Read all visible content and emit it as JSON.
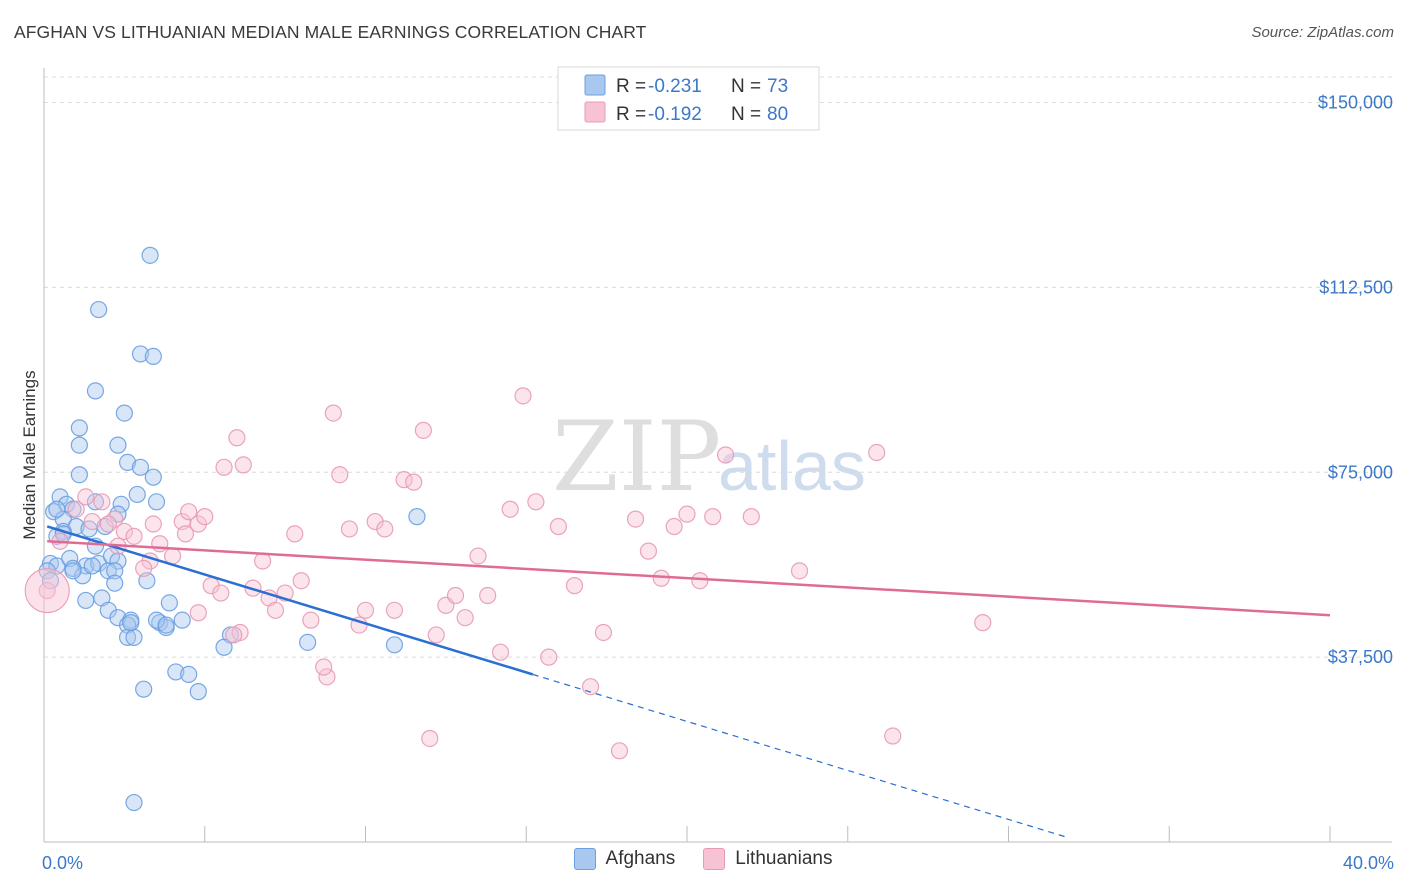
{
  "title": "AFGHAN VS LITHUANIAN MEDIAN MALE EARNINGS CORRELATION CHART",
  "source": "Source: ZipAtlas.com",
  "chart_data": {
    "type": "scatter",
    "title": "AFGHAN VS LITHUANIAN MEDIAN MALE EARNINGS CORRELATION CHART",
    "xlabel": "",
    "ylabel": "Median Male Earnings",
    "xlim": [
      0,
      40
    ],
    "ylim": [
      0,
      157000
    ],
    "x_tick_labels": [
      "0.0%",
      "40.0%"
    ],
    "y_ticks": [
      37500,
      75000,
      112500,
      150000
    ],
    "y_tick_labels": [
      "$37,500",
      "$75,000",
      "$112,500",
      "$150,000"
    ],
    "grid": true,
    "watermark": {
      "zip": "ZIP",
      "atlas": "atlas"
    },
    "legend": [
      {
        "r_label": "R = ",
        "r_value": "-0.231",
        "n_label": "N = ",
        "n_value": "73"
      },
      {
        "r_label": "R = ",
        "r_value": "-0.192",
        "n_label": "N = ",
        "n_value": "80"
      }
    ],
    "series": [
      {
        "name": "Afghans",
        "color": "#6a9fe0",
        "fill": "#a9c8f0",
        "trend_color": "#2a6fd1",
        "trend": {
          "x0": 0.1,
          "y0": 64000,
          "x1": 15.2,
          "y1": 34000,
          "dash_x1": 31.8,
          "dash_y1": 1000
        },
        "points": [
          [
            2.3,
            80500
          ],
          [
            1.7,
            108000
          ],
          [
            3.3,
            119000
          ],
          [
            3.0,
            99000
          ],
          [
            3.4,
            98500
          ],
          [
            1.6,
            91500
          ],
          [
            2.5,
            87000
          ],
          [
            1.1,
            84000
          ],
          [
            1.1,
            80500
          ],
          [
            2.6,
            77000
          ],
          [
            3.0,
            76000
          ],
          [
            3.4,
            74000
          ],
          [
            1.1,
            74500
          ],
          [
            0.5,
            70000
          ],
          [
            0.7,
            68500
          ],
          [
            1.6,
            69000
          ],
          [
            2.4,
            68500
          ],
          [
            0.9,
            67500
          ],
          [
            0.3,
            67000
          ],
          [
            2.9,
            70500
          ],
          [
            3.5,
            69000
          ],
          [
            2.3,
            66500
          ],
          [
            0.6,
            65500
          ],
          [
            1.0,
            64000
          ],
          [
            1.4,
            63500
          ],
          [
            0.6,
            63000
          ],
          [
            0.4,
            62000
          ],
          [
            1.6,
            60000
          ],
          [
            0.2,
            56500
          ],
          [
            0.4,
            56000
          ],
          [
            0.8,
            57500
          ],
          [
            1.3,
            56000
          ],
          [
            1.7,
            56500
          ],
          [
            2.1,
            58000
          ],
          [
            2.3,
            57000
          ],
          [
            0.9,
            55500
          ],
          [
            1.2,
            54000
          ],
          [
            2.0,
            55000
          ],
          [
            2.2,
            55000
          ],
          [
            3.2,
            53000
          ],
          [
            0.1,
            55000
          ],
          [
            0.2,
            53000
          ],
          [
            2.2,
            52500
          ],
          [
            1.3,
            49000
          ],
          [
            1.8,
            49500
          ],
          [
            3.9,
            48500
          ],
          [
            2.0,
            47000
          ],
          [
            2.3,
            45500
          ],
          [
            2.7,
            45000
          ],
          [
            3.6,
            44500
          ],
          [
            2.6,
            44000
          ],
          [
            3.8,
            43500
          ],
          [
            3.5,
            45000
          ],
          [
            4.3,
            45000
          ],
          [
            2.6,
            41500
          ],
          [
            2.8,
            41500
          ],
          [
            5.8,
            42000
          ],
          [
            8.2,
            40500
          ],
          [
            10.9,
            40000
          ],
          [
            4.1,
            34500
          ],
          [
            4.5,
            34000
          ],
          [
            3.1,
            31000
          ],
          [
            4.8,
            30500
          ],
          [
            5.6,
            39500
          ],
          [
            11.6,
            66000
          ],
          [
            2.8,
            8000
          ],
          [
            0.4,
            67500
          ],
          [
            1.9,
            64000
          ],
          [
            0.6,
            62500
          ],
          [
            3.8,
            44000
          ],
          [
            2.7,
            44500
          ],
          [
            1.5,
            56000
          ],
          [
            0.9,
            55000
          ]
        ]
      },
      {
        "name": "Lithuanians",
        "color": "#e89ab4",
        "fill": "#f7c3d4",
        "trend_color": "#e06c96",
        "trend": {
          "x0": 0.1,
          "y0": 61000,
          "x1": 40.0,
          "y1": 46000
        },
        "points": [
          [
            0.1,
            51000
          ],
          [
            0.5,
            61000
          ],
          [
            1.0,
            67500
          ],
          [
            1.3,
            70000
          ],
          [
            1.8,
            69000
          ],
          [
            2.2,
            65500
          ],
          [
            2.5,
            63000
          ],
          [
            2.8,
            62000
          ],
          [
            3.3,
            57000
          ],
          [
            3.4,
            64500
          ],
          [
            3.6,
            60500
          ],
          [
            4.0,
            58000
          ],
          [
            4.3,
            65000
          ],
          [
            4.5,
            67000
          ],
          [
            4.8,
            64500
          ],
          [
            5.0,
            66000
          ],
          [
            5.2,
            52000
          ],
          [
            5.5,
            50500
          ],
          [
            5.6,
            76000
          ],
          [
            6.0,
            82000
          ],
          [
            6.2,
            76500
          ],
          [
            6.5,
            51500
          ],
          [
            6.8,
            57000
          ],
          [
            7.0,
            49500
          ],
          [
            7.2,
            47000
          ],
          [
            7.5,
            50500
          ],
          [
            7.8,
            62500
          ],
          [
            8.0,
            53000
          ],
          [
            8.3,
            45000
          ],
          [
            8.8,
            33500
          ],
          [
            9.0,
            87000
          ],
          [
            9.2,
            74500
          ],
          [
            9.5,
            63500
          ],
          [
            9.8,
            44000
          ],
          [
            10.0,
            47000
          ],
          [
            10.3,
            65000
          ],
          [
            10.6,
            63500
          ],
          [
            10.9,
            47000
          ],
          [
            11.2,
            73500
          ],
          [
            11.5,
            73000
          ],
          [
            11.8,
            83500
          ],
          [
            12.2,
            42000
          ],
          [
            12.5,
            48000
          ],
          [
            12.8,
            50000
          ],
          [
            13.1,
            45500
          ],
          [
            13.5,
            58000
          ],
          [
            13.8,
            50000
          ],
          [
            14.2,
            38500
          ],
          [
            14.5,
            67500
          ],
          [
            14.9,
            90500
          ],
          [
            15.3,
            69000
          ],
          [
            15.7,
            37500
          ],
          [
            16.0,
            64000
          ],
          [
            16.5,
            52000
          ],
          [
            17.0,
            31500
          ],
          [
            17.4,
            42500
          ],
          [
            17.9,
            18500
          ],
          [
            18.4,
            65500
          ],
          [
            18.8,
            59000
          ],
          [
            19.2,
            53500
          ],
          [
            19.6,
            64000
          ],
          [
            20.0,
            66500
          ],
          [
            20.4,
            53000
          ],
          [
            20.8,
            66000
          ],
          [
            21.2,
            78500
          ],
          [
            22.0,
            66000
          ],
          [
            23.5,
            55000
          ],
          [
            25.9,
            79000
          ],
          [
            26.4,
            21500
          ],
          [
            29.2,
            44500
          ],
          [
            12.0,
            21000
          ],
          [
            4.8,
            46500
          ],
          [
            6.1,
            42500
          ],
          [
            3.1,
            55500
          ],
          [
            2.0,
            64500
          ],
          [
            1.5,
            65000
          ],
          [
            5.9,
            42000
          ],
          [
            8.7,
            35500
          ],
          [
            2.3,
            60000
          ],
          [
            4.4,
            62500
          ]
        ]
      }
    ]
  }
}
